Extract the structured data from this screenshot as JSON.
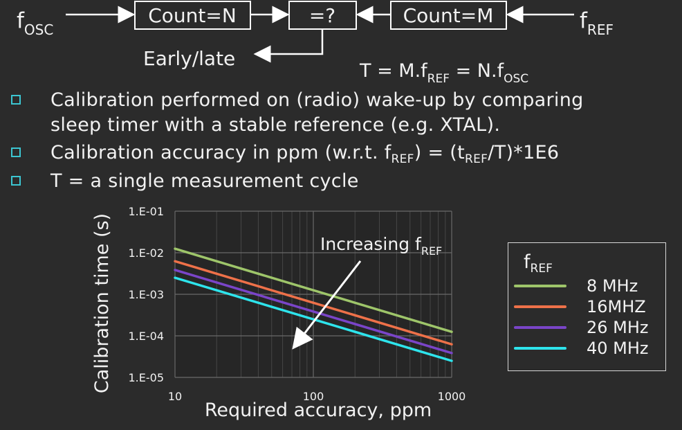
{
  "diagram": {
    "f_osc": "f",
    "f_osc_sub": "OSC",
    "count_n": "Count=N",
    "compare": "=?",
    "count_m": "Count=M",
    "f_ref": "f",
    "f_ref_sub": "REF",
    "early_late": "Early/late",
    "equation": {
      "t1": "T = M.f",
      "s1": "REF",
      "t2": " = N.f",
      "s2": "OSC"
    }
  },
  "bullets": [
    {
      "line1": "Calibration performed on (radio) wake-up by comparing",
      "line2": "sleep timer with a stable reference (e.g. XTAL)."
    },
    {
      "p1": "Calibration accuracy in ppm (w.r.t. f",
      "s1": "REF",
      "p2": ") = (t",
      "s2": "REF",
      "p3": "/T)*1E6"
    },
    {
      "text": "T = a single measurement cycle"
    }
  ],
  "colors": {
    "background": "#2b2b2b",
    "bullet": "#3cc6d2",
    "s8": "#9ec56a",
    "s16": "#ee7149",
    "s26": "#7a45c8",
    "s40": "#2ee4ec"
  },
  "chart_data": {
    "type": "line",
    "x_scale": "log",
    "y_scale": "log",
    "xlabel": "Required accuracy, ppm",
    "ylabel": "Calibration time (s)",
    "xlim": [
      10,
      1000
    ],
    "ylim": [
      1e-05,
      0.1
    ],
    "x_ticks": [
      10,
      100,
      1000
    ],
    "x_tick_labels": [
      "10",
      "100",
      "1000"
    ],
    "y_ticks": [
      0.1,
      0.01,
      0.001,
      0.0001,
      1e-05
    ],
    "y_tick_labels": [
      "1.E-01",
      "1.E-02",
      "1.E-03",
      "1.E-04",
      "1.E-05"
    ],
    "grid": true,
    "legend_title": "f",
    "legend_title_sub": "REF",
    "legend_position": "right",
    "annotation": {
      "text": "Increasing f",
      "sub": "REF"
    },
    "series": [
      {
        "name": "8 MHz",
        "x": [
          10,
          1000
        ],
        "y": [
          0.0125,
          0.000125
        ]
      },
      {
        "name": "16MHZ",
        "x": [
          10,
          1000
        ],
        "y": [
          0.00625,
          6.25e-05
        ]
      },
      {
        "name": "26 MHz",
        "x": [
          10,
          1000
        ],
        "y": [
          0.00385,
          3.85e-05
        ]
      },
      {
        "name": "40 MHz",
        "x": [
          10,
          1000
        ],
        "y": [
          0.0025,
          2.5e-05
        ]
      }
    ]
  }
}
